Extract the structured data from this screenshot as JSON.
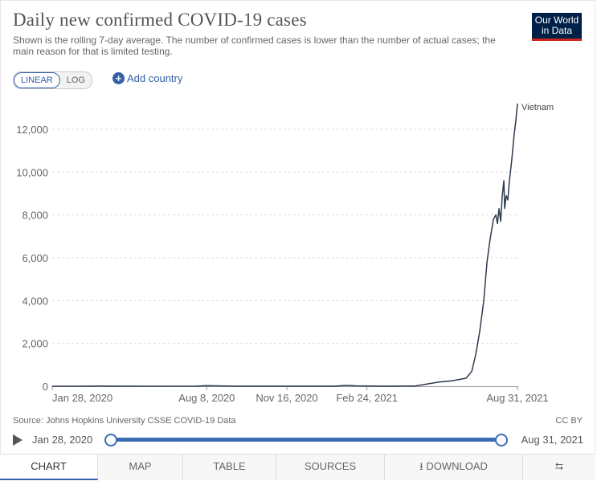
{
  "header": {
    "title": "Daily new confirmed COVID-19 cases",
    "subtitle": "Shown is the rolling 7-day average. The number of confirmed cases is lower than the number of actual cases; the main reason for that is limited testing.",
    "logo_line1": "Our World",
    "logo_line2": "in Data"
  },
  "controls": {
    "linear_label": "LINEAR",
    "log_label": "LOG",
    "add_country_label": "Add country",
    "add_icon": "plus-circle-icon"
  },
  "chart_data": {
    "type": "line",
    "title": "Daily new confirmed COVID-19 cases",
    "xlabel": "",
    "ylabel": "",
    "ylim": [
      0,
      13000
    ],
    "yticks": [
      0,
      2000,
      4000,
      6000,
      8000,
      10000,
      12000
    ],
    "ytick_labels": [
      "0",
      "2,000",
      "4,000",
      "6,000",
      "8,000",
      "10,000",
      "12,000"
    ],
    "xticks": [
      "Jan 28, 2020",
      "Aug 8, 2020",
      "Nov 16, 2020",
      "Feb 24, 2021",
      "Aug 31, 2021"
    ],
    "x_range": [
      "Jan 28, 2020",
      "Aug 31, 2021"
    ],
    "grid": "horizontal dashed",
    "series": [
      {
        "name": "Vietnam",
        "color": "#2e3a4d",
        "points": [
          [
            "2020-01-28",
            0
          ],
          [
            "2020-03-01",
            0
          ],
          [
            "2020-03-25",
            10
          ],
          [
            "2020-04-15",
            5
          ],
          [
            "2020-06-01",
            1
          ],
          [
            "2020-07-25",
            5
          ],
          [
            "2020-08-08",
            30
          ],
          [
            "2020-08-20",
            20
          ],
          [
            "2020-09-10",
            2
          ],
          [
            "2020-11-16",
            2
          ],
          [
            "2021-01-15",
            3
          ],
          [
            "2021-01-30",
            40
          ],
          [
            "2021-02-10",
            20
          ],
          [
            "2021-03-15",
            5
          ],
          [
            "2021-04-25",
            10
          ],
          [
            "2021-05-10",
            100
          ],
          [
            "2021-05-25",
            200
          ],
          [
            "2021-06-10",
            250
          ],
          [
            "2021-06-20",
            320
          ],
          [
            "2021-06-28",
            380
          ],
          [
            "2021-07-05",
            700
          ],
          [
            "2021-07-10",
            1500
          ],
          [
            "2021-07-15",
            2600
          ],
          [
            "2021-07-20",
            4000
          ],
          [
            "2021-07-24",
            5800
          ],
          [
            "2021-07-28",
            6900
          ],
          [
            "2021-08-01",
            7800
          ],
          [
            "2021-08-04",
            8000
          ],
          [
            "2021-08-06",
            7600
          ],
          [
            "2021-08-08",
            8300
          ],
          [
            "2021-08-10",
            7700
          ],
          [
            "2021-08-12",
            8900
          ],
          [
            "2021-08-14",
            9600
          ],
          [
            "2021-08-15",
            8300
          ],
          [
            "2021-08-17",
            8900
          ],
          [
            "2021-08-19",
            8700
          ],
          [
            "2021-08-21",
            9600
          ],
          [
            "2021-08-24",
            10600
          ],
          [
            "2021-08-27",
            11800
          ],
          [
            "2021-08-29",
            12400
          ],
          [
            "2021-08-31",
            13200
          ]
        ]
      }
    ]
  },
  "footer": {
    "source": "Source: Johns Hopkins University CSSE COVID-19 Data",
    "license": "CC BY",
    "timeline_start": "Jan 28, 2020",
    "timeline_end": "Aug 31, 2021"
  },
  "tabs": [
    {
      "label": "CHART",
      "active": true
    },
    {
      "label": "MAP"
    },
    {
      "label": "TABLE"
    },
    {
      "label": "SOURCES"
    },
    {
      "label": "DOWNLOAD",
      "icon": "download-icon"
    },
    {
      "label": "",
      "icon": "share-icon"
    }
  ]
}
